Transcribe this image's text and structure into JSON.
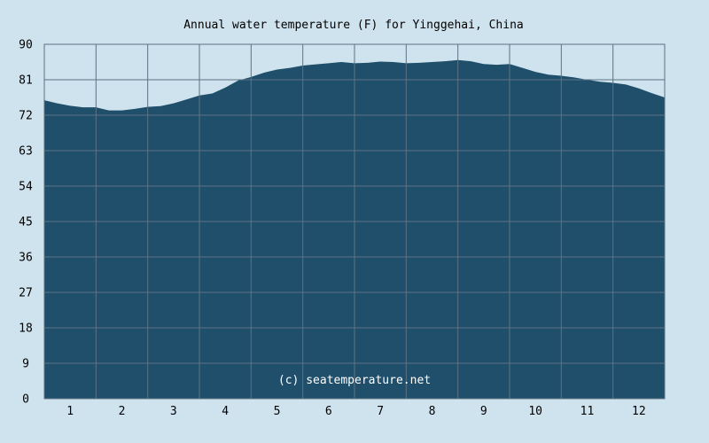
{
  "chart_data": {
    "type": "area",
    "title": "Annual water temperature (F) for Yinggehai, China",
    "xlabel": "",
    "ylabel": "",
    "x_ticks": [
      "1",
      "2",
      "3",
      "4",
      "5",
      "6",
      "7",
      "8",
      "9",
      "10",
      "11",
      "12"
    ],
    "y_ticks": [
      "0",
      "9",
      "18",
      "27",
      "36",
      "45",
      "54",
      "63",
      "72",
      "81",
      "90"
    ],
    "xlim": [
      0.5,
      12.5
    ],
    "ylim": [
      0,
      90
    ],
    "grid": true,
    "watermark": "(c) seatemperature.net",
    "series": [
      {
        "x": [
          0.5,
          0.75,
          1.0,
          1.25,
          1.5,
          1.75,
          2.0,
          2.25,
          2.5,
          2.75,
          3.0,
          3.25,
          3.5,
          3.75,
          4.0,
          4.25,
          4.5,
          4.75,
          5.0,
          5.25,
          5.5,
          5.75,
          6.0,
          6.25,
          6.5,
          6.75,
          7.0,
          7.25,
          7.5,
          7.75,
          8.0,
          8.25,
          8.5,
          8.75,
          9.0,
          9.25,
          9.5,
          9.75,
          10.0,
          10.25,
          10.5,
          10.75,
          11.0,
          11.25,
          11.5,
          11.75,
          12.0,
          12.25,
          12.5
        ],
        "y": [
          75.8,
          75.0,
          74.4,
          74.0,
          74.0,
          73.2,
          73.2,
          73.6,
          74.1,
          74.3,
          75.0,
          76.0,
          77.0,
          77.5,
          79.0,
          80.8,
          81.7,
          82.8,
          83.6,
          84.0,
          84.6,
          84.9,
          85.2,
          85.5,
          85.2,
          85.3,
          85.6,
          85.5,
          85.2,
          85.3,
          85.5,
          85.7,
          86.0,
          85.7,
          85.0,
          84.8,
          85.0,
          84.0,
          83.0,
          82.3,
          82.0,
          81.6,
          81.0,
          80.5,
          80.2,
          79.8,
          78.8,
          77.6,
          76.5
        ]
      }
    ],
    "colors": {
      "background": "#cfe3ee",
      "fill": "#1f4f6b",
      "axis": "#5d7383",
      "grid": "#5d7383"
    }
  }
}
